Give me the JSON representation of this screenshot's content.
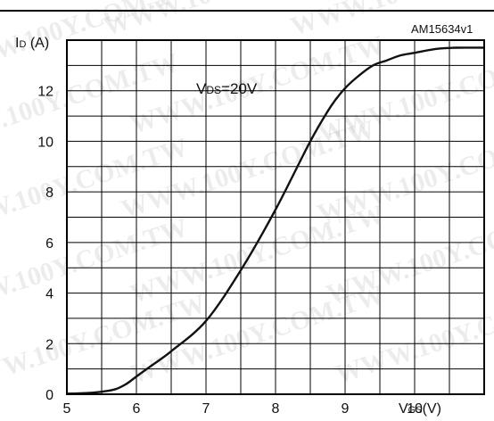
{
  "chart_data": {
    "type": "line",
    "figure_id": "AM15634v1",
    "ylabel": {
      "main": "I",
      "sub": "D",
      "unit": " (A)"
    },
    "xlabel": {
      "main": "V",
      "sub": "GS",
      "unit": "(V)"
    },
    "annotation": {
      "main": "V",
      "sub": "DS",
      "rest": "=20V"
    },
    "xlim": [
      5,
      11
    ],
    "ylim": [
      0,
      14
    ],
    "x_ticks": [
      5,
      6,
      7,
      8,
      9,
      10
    ],
    "y_ticks": [
      0,
      2,
      4,
      6,
      8,
      10,
      12
    ],
    "grid": true,
    "series": [
      {
        "x": [
          5.0,
          5.3,
          5.5,
          5.7,
          5.85,
          6.0,
          6.2,
          6.5,
          7.0,
          7.5,
          8.0,
          8.5,
          8.8,
          9.0,
          9.2,
          9.4,
          9.6,
          9.8,
          10.0,
          10.3,
          10.6,
          11.0
        ],
        "y": [
          0.02,
          0.05,
          0.1,
          0.2,
          0.4,
          0.7,
          1.1,
          1.7,
          2.9,
          4.9,
          7.3,
          10.0,
          11.4,
          12.1,
          12.6,
          13.0,
          13.2,
          13.4,
          13.5,
          13.65,
          13.7,
          13.7
        ]
      }
    ],
    "watermark": "WWW.100Y.COM.TW"
  }
}
